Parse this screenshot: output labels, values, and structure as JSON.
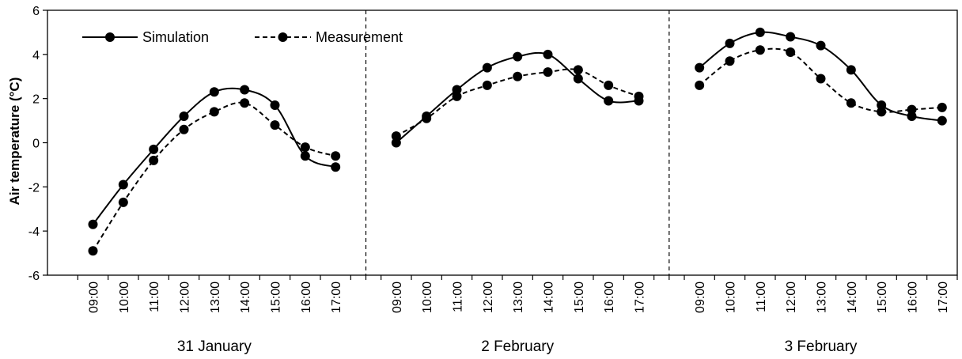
{
  "chart_data": {
    "type": "line",
    "title": "",
    "xlabel": "",
    "ylabel": "Air temperature (°C)",
    "ylim": [
      -6,
      6
    ],
    "yticks": [
      -6,
      -4,
      -2,
      0,
      2,
      4,
      6
    ],
    "grid": false,
    "legend_position": "top-left",
    "colors": {
      "line": "#000000",
      "marker": "#000000"
    },
    "groups": [
      {
        "label": "31 January",
        "categories": [
          "09:00",
          "10:00",
          "11:00",
          "12:00",
          "13:00",
          "14:00",
          "15:00",
          "16:00",
          "17:00"
        ]
      },
      {
        "label": "2 February",
        "categories": [
          "09:00",
          "10:00",
          "11:00",
          "12:00",
          "13:00",
          "14:00",
          "15:00",
          "16:00",
          "17:00"
        ]
      },
      {
        "label": "3 February",
        "categories": [
          "09:00",
          "10:00",
          "11:00",
          "12:00",
          "13:00",
          "14:00",
          "15:00",
          "16:00",
          "17:00"
        ]
      }
    ],
    "series": [
      {
        "name": "Simulation",
        "style": "solid",
        "values": [
          [
            -3.7,
            -1.9,
            -0.3,
            1.2,
            2.3,
            2.4,
            1.7,
            -0.6,
            -1.1
          ],
          [
            0.0,
            1.2,
            2.4,
            3.4,
            3.9,
            4.0,
            2.9,
            1.9,
            1.9
          ],
          [
            3.4,
            4.5,
            5.0,
            4.8,
            4.4,
            3.3,
            1.7,
            1.2,
            1.0
          ]
        ]
      },
      {
        "name": "Measurement",
        "style": "dashed",
        "values": [
          [
            -4.9,
            -2.7,
            -0.8,
            0.6,
            1.4,
            1.8,
            0.8,
            -0.2,
            -0.6
          ],
          [
            0.3,
            1.1,
            2.1,
            2.6,
            3.0,
            3.2,
            3.3,
            2.6,
            2.1
          ],
          [
            2.6,
            3.7,
            4.2,
            4.1,
            2.9,
            1.8,
            1.4,
            1.5,
            1.6
          ]
        ]
      }
    ]
  }
}
